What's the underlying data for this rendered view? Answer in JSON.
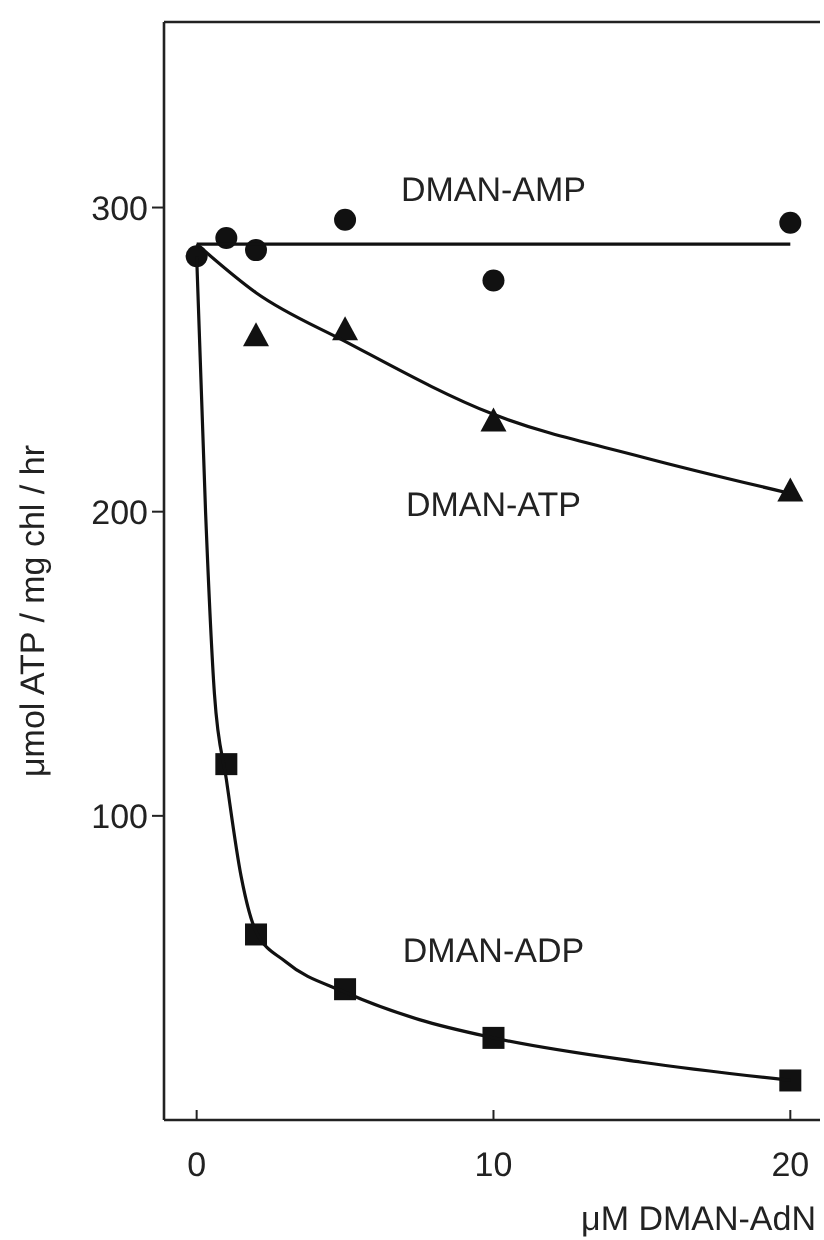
{
  "chart_data": {
    "type": "scatter",
    "xlabel": "μM DMAN-AdN",
    "ylabel": "μmol ATP / mg chl / hr",
    "xlim": [
      -1.1,
      21
    ],
    "ylim": [
      0,
      361
    ],
    "xticks": [
      0,
      10,
      20
    ],
    "yticks": [
      100,
      200,
      300
    ],
    "grid": false,
    "legend": false,
    "series": [
      {
        "name": "DMAN-AMP",
        "marker": "circle",
        "color": "#111111",
        "x": [
          0,
          1,
          2,
          5,
          10,
          20
        ],
        "values": [
          284,
          290,
          286,
          296,
          276,
          295
        ]
      },
      {
        "name": "DMAN-ATP",
        "marker": "triangle",
        "color": "#111111",
        "x": [
          2,
          5,
          10,
          20
        ],
        "values": [
          258,
          260,
          230,
          207
        ]
      },
      {
        "name": "DMAN-ADP",
        "marker": "square",
        "color": "#111111",
        "x": [
          1,
          2,
          5,
          10,
          20
        ],
        "values": [
          117,
          61,
          43,
          27,
          13
        ]
      },
      {
        "type": "line",
        "marker": "none",
        "color": "#111111",
        "x": [
          0,
          20
        ],
        "values": [
          288,
          288
        ]
      },
      {
        "type": "line",
        "marker": "none",
        "color": "#111111",
        "x": [
          0,
          2,
          5,
          10,
          15,
          20
        ],
        "values": [
          288,
          272,
          256,
          232,
          218,
          206
        ]
      },
      {
        "type": "line",
        "marker": "none",
        "color": "#111111",
        "x": [
          0,
          0.3,
          0.6,
          1,
          1.5,
          2,
          3,
          5,
          7.5,
          10,
          15,
          20
        ],
        "values": [
          284,
          200,
          140,
          112,
          80,
          62,
          52,
          42,
          33,
          27,
          19,
          13
        ]
      }
    ]
  }
}
